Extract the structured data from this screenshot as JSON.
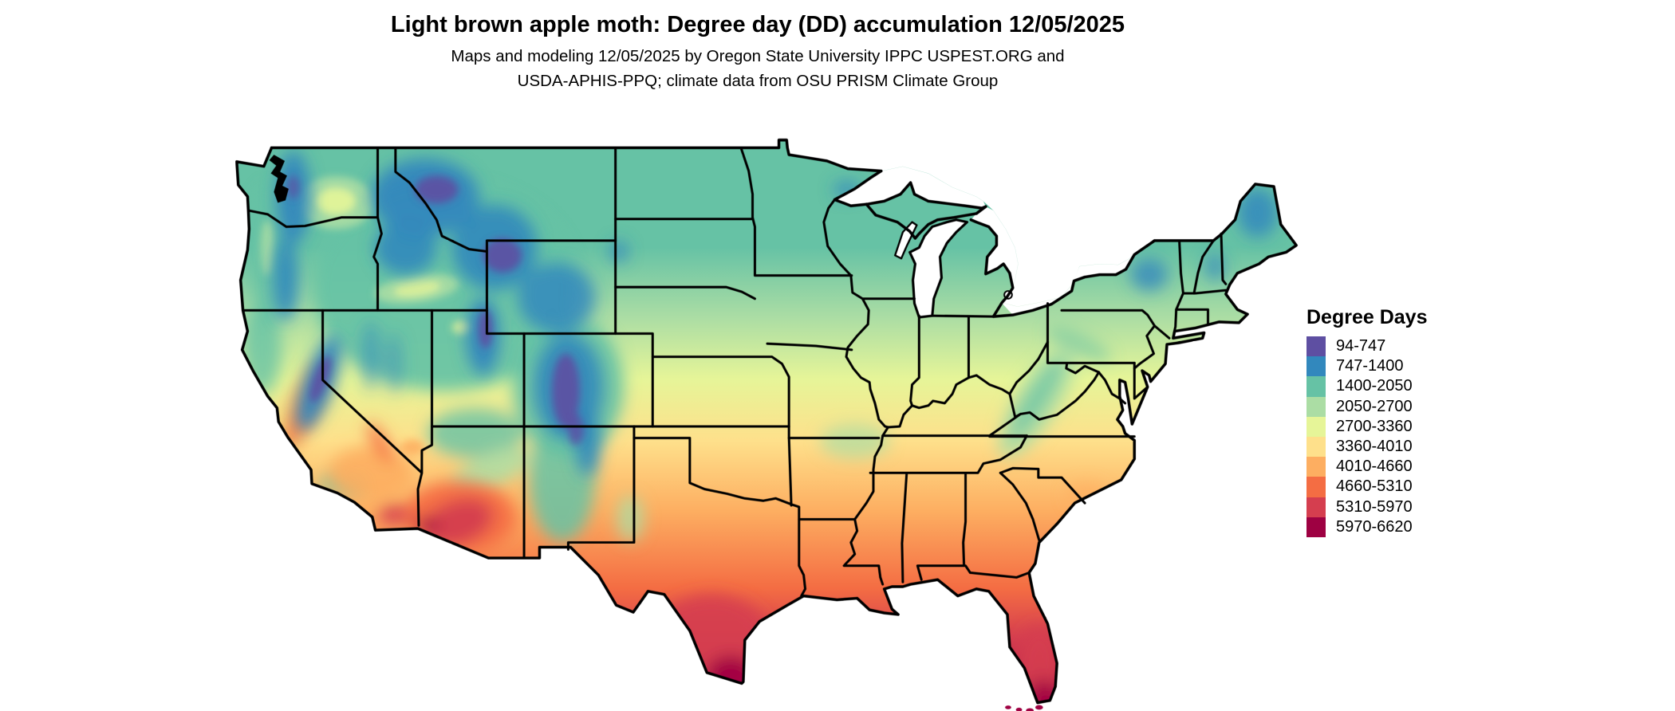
{
  "header": {
    "title": "Light brown apple moth: Degree day (DD) accumulation 12/05/2025",
    "subtitle_line1": "Maps and modeling 12/05/2025 by Oregon State University IPPC USPEST.ORG and",
    "subtitle_line2": "USDA-APHIS-PPQ; climate data from OSU PRISM Climate Group"
  },
  "legend": {
    "title": "Degree Days",
    "classes": [
      {
        "range": "94-747",
        "color": "#5e4fa2"
      },
      {
        "range": "747-1400",
        "color": "#3288bd"
      },
      {
        "range": "1400-2050",
        "color": "#66c2a5"
      },
      {
        "range": "2050-2700",
        "color": "#abdda4"
      },
      {
        "range": "2700-3360",
        "color": "#e6f598"
      },
      {
        "range": "3360-4010",
        "color": "#fee08b"
      },
      {
        "range": "4010-4660",
        "color": "#fdae61"
      },
      {
        "range": "4660-5310",
        "color": "#f46d43"
      },
      {
        "range": "5310-5970",
        "color": "#d53e4f"
      },
      {
        "range": "5970-6620",
        "color": "#9e0142"
      }
    ]
  },
  "chart_data": {
    "type": "choropleth_map",
    "title": "Light brown apple moth: Degree day (DD) accumulation 12/05/2025",
    "region": "Contiguous United States",
    "variable": "Degree day (DD) accumulation",
    "date_shown": "12/05/2025",
    "legend_title": "Degree Days",
    "value_min": 94,
    "value_max": 6620,
    "legend_position": "right",
    "bins": [
      {
        "label": "94-747",
        "min": 94,
        "max": 747,
        "color": "#5e4fa2"
      },
      {
        "label": "747-1400",
        "min": 747,
        "max": 1400,
        "color": "#3288bd"
      },
      {
        "label": "1400-2050",
        "min": 1400,
        "max": 2050,
        "color": "#66c2a5"
      },
      {
        "label": "2050-2700",
        "min": 2050,
        "max": 2700,
        "color": "#abdda4"
      },
      {
        "label": "2700-3360",
        "min": 2700,
        "max": 3360,
        "color": "#e6f598"
      },
      {
        "label": "3360-4010",
        "min": 3360,
        "max": 4010,
        "color": "#fee08b"
      },
      {
        "label": "4010-4660",
        "min": 4010,
        "max": 4660,
        "color": "#fdae61"
      },
      {
        "label": "4660-5310",
        "min": 4660,
        "max": 5310,
        "color": "#f46d43"
      },
      {
        "label": "5310-5970",
        "min": 5310,
        "max": 5970,
        "color": "#d53e4f"
      },
      {
        "label": "5970-6620",
        "min": 5970,
        "max": 6620,
        "color": "#9e0142"
      }
    ],
    "pattern_notes": "Low accumulation (purple/blue) over Rocky Mountains, Cascades, Sierra Nevada and northern tier; mid values (teal/green) across northern states and Appalachians; yellow across central plains and mid-Atlantic; orange across the south; highest values (red/maroon) in desert Arizona, south Texas and south Florida"
  }
}
